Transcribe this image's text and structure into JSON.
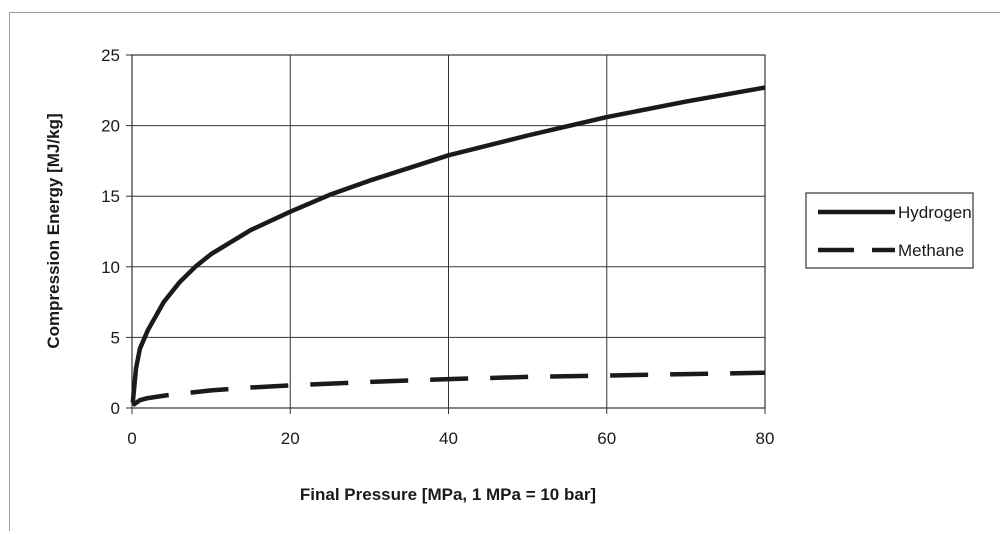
{
  "chart_data": {
    "type": "line",
    "title": "",
    "xlabel": "Final Pressure [MPa, 1 MPa = 10 bar]",
    "ylabel": "Compression Energy [MJ/kg]",
    "xlim": [
      0,
      80
    ],
    "ylim": [
      0,
      25
    ],
    "x_ticks": [
      0,
      20,
      40,
      60,
      80
    ],
    "y_ticks": [
      0,
      5,
      10,
      15,
      20,
      25
    ],
    "grid": true,
    "legend_position": "right",
    "series": [
      {
        "name": "Hydrogen",
        "line_style": "solid",
        "color": "#1a1a1a",
        "x": [
          0.1,
          0.5,
          1,
          2,
          4,
          6,
          8,
          10,
          15,
          20,
          25,
          30,
          40,
          50,
          60,
          70,
          80
        ],
        "y": [
          0.4,
          2.8,
          4.2,
          5.5,
          7.5,
          8.9,
          10.0,
          10.9,
          12.6,
          13.9,
          15.1,
          16.1,
          17.9,
          19.3,
          20.6,
          21.7,
          22.7
        ]
      },
      {
        "name": "Methane",
        "line_style": "dashed",
        "color": "#1a1a1a",
        "x": [
          0.1,
          1,
          2,
          5,
          10,
          15,
          20,
          30,
          40,
          50,
          60,
          70,
          80
        ],
        "y": [
          0.2,
          0.55,
          0.7,
          0.95,
          1.25,
          1.45,
          1.6,
          1.85,
          2.05,
          2.2,
          2.3,
          2.4,
          2.5
        ]
      }
    ]
  }
}
